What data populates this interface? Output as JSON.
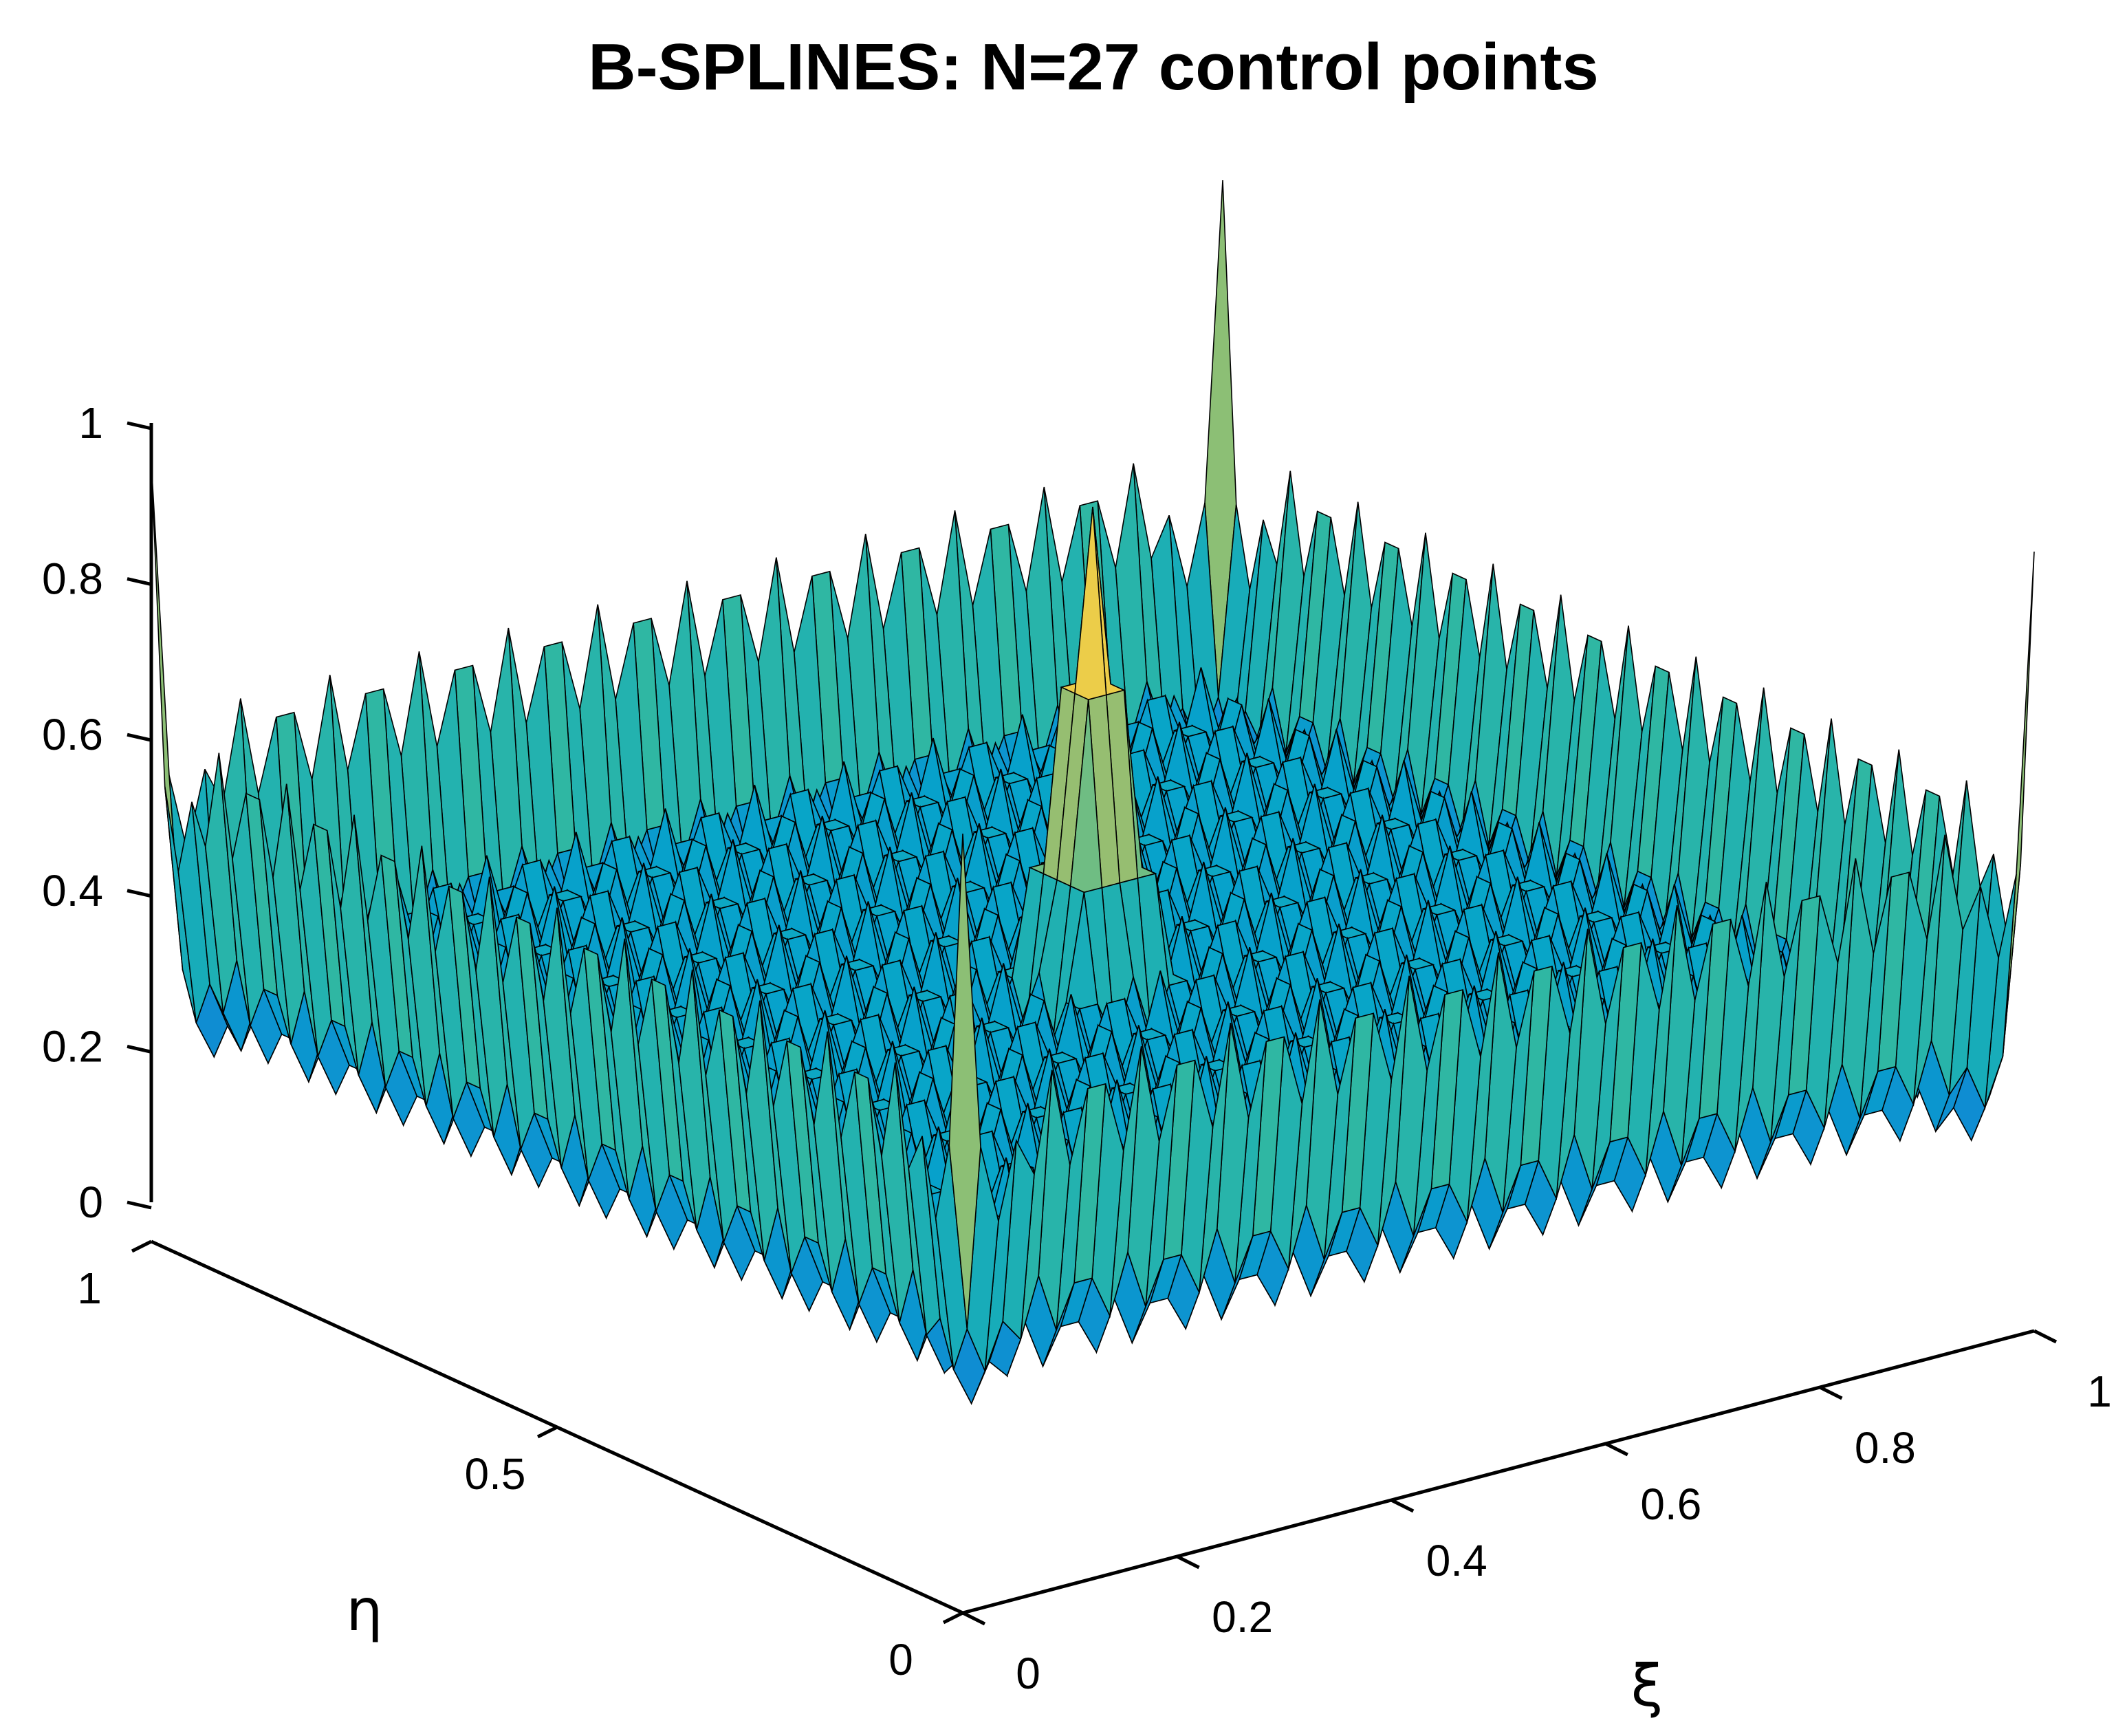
{
  "chart_data": {
    "type": "surface",
    "title": "B-SPLINES: N=27 control points",
    "xlabel": "ξ",
    "ylabel": "η",
    "zlabel": "",
    "xlim": [
      0,
      1
    ],
    "ylim": [
      0,
      1
    ],
    "zlim": [
      0,
      1
    ],
    "x_ticks": [
      "0",
      "0.2",
      "0.4",
      "0.6",
      "0.8",
      "1"
    ],
    "y_ticks": [
      "0",
      "0.5",
      "1"
    ],
    "z_ticks": [
      "0",
      "0.2",
      "0.4",
      "0.6",
      "0.8",
      "1"
    ],
    "control_points": 27,
    "colormap": "parula",
    "colormap_colors": [
      "#352a87",
      "#0f5cdd",
      "#1481d6",
      "#06a4ca",
      "#2eb7a4",
      "#87bf77",
      "#d1bb59",
      "#fed93f",
      "#f9fb0e"
    ],
    "peak_values": [
      {
        "xi": 0,
        "eta": 1,
        "value": 1.0
      },
      {
        "xi": 1,
        "eta": 1,
        "value": 1.0
      },
      {
        "xi": 1,
        "eta": 0,
        "value": 1.0
      },
      {
        "xi": 0.5,
        "eta": 0.5,
        "value": 1.0
      }
    ],
    "grid": false
  }
}
